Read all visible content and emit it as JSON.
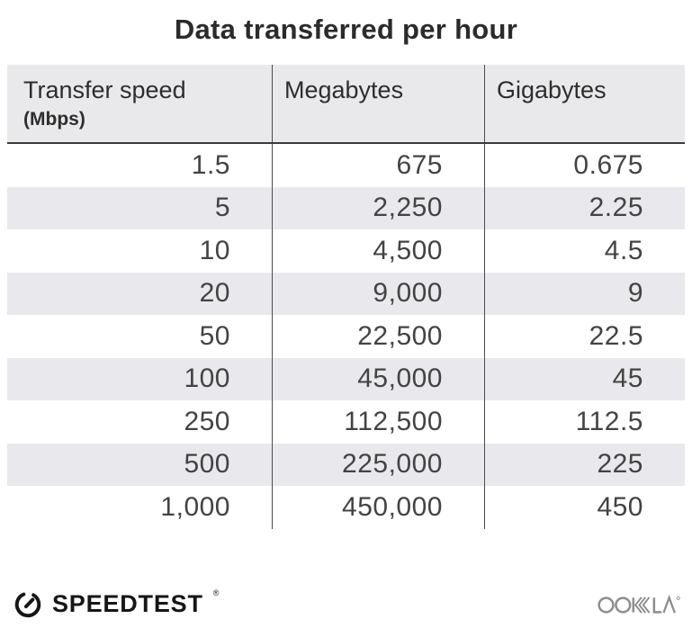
{
  "title": "Data transferred per hour",
  "chart_data": {
    "type": "table",
    "title": "Data transferred per hour",
    "columns": [
      "Transfer speed (Mbps)",
      "Megabytes",
      "Gigabytes"
    ],
    "rows": [
      [
        1.5,
        675,
        0.675
      ],
      [
        5,
        2250,
        2.25
      ],
      [
        10,
        4500,
        4.5
      ],
      [
        20,
        9000,
        9
      ],
      [
        50,
        22500,
        22.5
      ],
      [
        100,
        45000,
        45
      ],
      [
        250,
        112500,
        112.5
      ],
      [
        500,
        225000,
        225
      ],
      [
        1000,
        450000,
        450
      ]
    ]
  },
  "table": {
    "headers": [
      {
        "label": "Transfer speed",
        "sublabel": "(Mbps)"
      },
      {
        "label": "Megabytes",
        "sublabel": ""
      },
      {
        "label": "Gigabytes",
        "sublabel": ""
      }
    ],
    "rows": [
      [
        "1.5",
        "675",
        "0.675"
      ],
      [
        "5",
        "2,250",
        "2.25"
      ],
      [
        "10",
        "4,500",
        "4.5"
      ],
      [
        "20",
        "9,000",
        "9"
      ],
      [
        "50",
        "22,500",
        "22.5"
      ],
      [
        "100",
        "45,000",
        "45"
      ],
      [
        "250",
        "112,500",
        "112.5"
      ],
      [
        "500",
        "225,000",
        "225"
      ],
      [
        "1,000",
        "450,000",
        "450"
      ]
    ]
  },
  "footer": {
    "brand": "SPEEDTEST",
    "brand_trademark": "®",
    "partner": "OOKLA"
  },
  "colors": {
    "title_text": "#2b2b2b",
    "header_bg": "#e9e9eb",
    "stripe_bg": "#e9e9ed",
    "divider": "#4a4a4a",
    "header_rule": "#3b3b3b",
    "number_text": "#434343",
    "brand_text": "#161616",
    "ookla_gray": "#8d8d8d"
  }
}
